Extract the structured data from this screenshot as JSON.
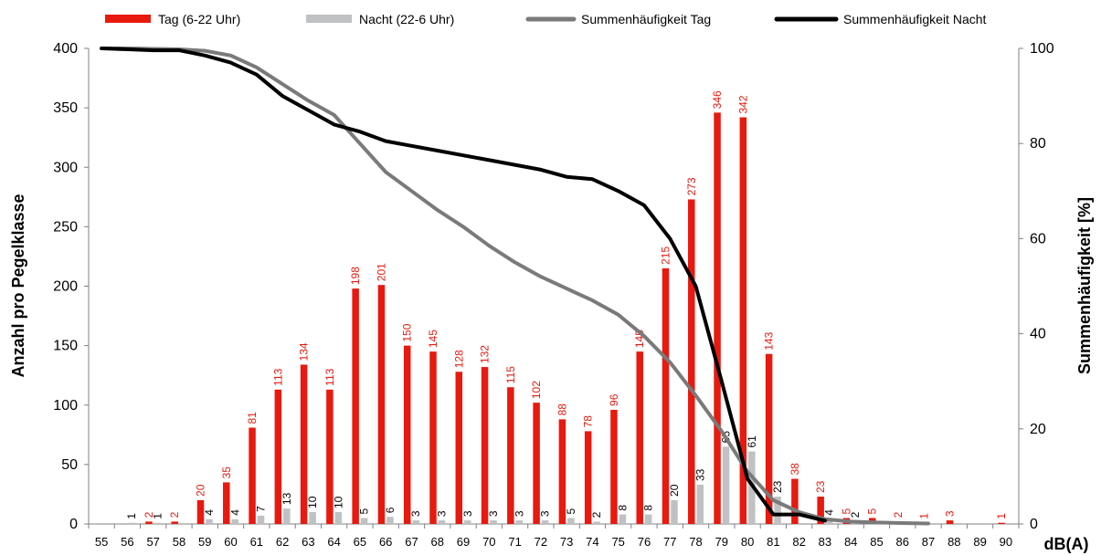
{
  "chart_data": {
    "type": "bar",
    "title": "",
    "xlabel": "dB(A)",
    "ylabel": "Anzahl pro Pegelklasse",
    "y2label": "Summenhäufigkeit [%]",
    "ylim": [
      0,
      400
    ],
    "y2lim": [
      0,
      100
    ],
    "yticks": [
      "0",
      "50",
      "100",
      "150",
      "200",
      "250",
      "300",
      "350",
      "400"
    ],
    "y2ticks": [
      "0",
      "20",
      "40",
      "60",
      "80",
      "100"
    ],
    "legend_position": "top",
    "categories": [
      "55",
      "56",
      "57",
      "58",
      "59",
      "60",
      "61",
      "62",
      "63",
      "64",
      "65",
      "66",
      "67",
      "68",
      "69",
      "70",
      "71",
      "72",
      "73",
      "74",
      "75",
      "76",
      "77",
      "78",
      "79",
      "80",
      "81",
      "82",
      "83",
      "84",
      "85",
      "86",
      "87",
      "88",
      "89",
      "90"
    ],
    "series": [
      {
        "name": "Tag (6-22 Uhr)",
        "kind": "bar",
        "axis": "left",
        "color": "#e8190e",
        "label_color": "#e8190e",
        "values": [
          0,
          0,
          2,
          2,
          20,
          35,
          81,
          113,
          134,
          113,
          198,
          201,
          150,
          145,
          128,
          132,
          115,
          102,
          88,
          78,
          96,
          145,
          215,
          273,
          346,
          342,
          143,
          38,
          23,
          5,
          5,
          2,
          1,
          3,
          0,
          1
        ],
        "labels": [
          "",
          "",
          "2",
          "2",
          "20",
          "35",
          "81",
          "113",
          "134",
          "113",
          "198",
          "201",
          "150",
          "145",
          "128",
          "132",
          "115",
          "102",
          "88",
          "78",
          "96",
          "145",
          "215",
          "273",
          "346",
          "342",
          "143",
          "38",
          "23",
          "5",
          "5",
          "2",
          "1",
          "3",
          "",
          "1"
        ]
      },
      {
        "name": "Nacht (22-6 Uhr)",
        "kind": "bar",
        "axis": "left",
        "color": "#bfc1c3",
        "label_color": "#000000",
        "values": [
          0,
          1,
          1,
          0,
          4,
          4,
          7,
          13,
          10,
          10,
          5,
          6,
          3,
          3,
          3,
          3,
          3,
          3,
          5,
          2,
          8,
          8,
          20,
          33,
          65,
          61,
          23,
          0,
          4,
          2,
          0,
          0,
          0,
          0,
          0,
          0
        ],
        "labels": [
          "",
          "1",
          "1",
          "",
          "4",
          "4",
          "7",
          "13",
          "10",
          "10",
          "5",
          "6",
          "3",
          "3",
          "3",
          "3",
          "3",
          "3",
          "5",
          "2",
          "8",
          "8",
          "20",
          "33",
          "65",
          "61",
          "23",
          "",
          "4",
          "2",
          "",
          "",
          "",
          "",
          "",
          ""
        ]
      },
      {
        "name": "Summenhäufigkeit Tag",
        "kind": "line",
        "axis": "right",
        "color": "#7a7a7a",
        "values": [
          100,
          100,
          99.9,
          99.8,
          99.5,
          98.5,
          96,
          92.5,
          89,
          86,
          80,
          74,
          70,
          66,
          62.5,
          58.5,
          55,
          52,
          49.5,
          47,
          44,
          39.5,
          34,
          27,
          19.5,
          11,
          5,
          2.5,
          1,
          0.5,
          0.3,
          0.2,
          0.1,
          null,
          null,
          null
        ]
      },
      {
        "name": "Summenhäufigkeit Nacht",
        "kind": "line",
        "axis": "right",
        "color": "#000000",
        "values": [
          100,
          99.8,
          99.6,
          99.6,
          98.5,
          97,
          94.5,
          90,
          87,
          84,
          82.5,
          80.5,
          79.5,
          78.5,
          77.5,
          76.5,
          75.5,
          74.5,
          73,
          72.5,
          70,
          67,
          60,
          50,
          30,
          9.5,
          2,
          2,
          0.7,
          null,
          null,
          null,
          null,
          null,
          null,
          null
        ]
      }
    ]
  }
}
